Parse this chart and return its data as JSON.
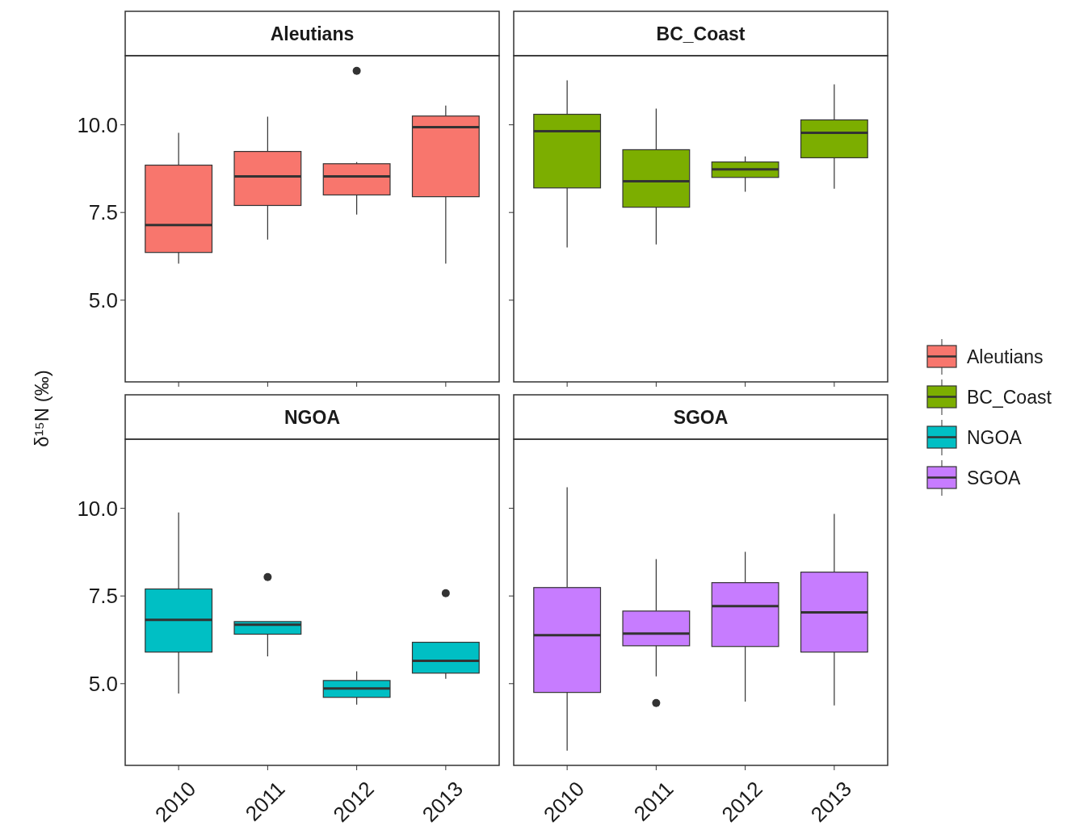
{
  "chart_data": [
    {
      "type": "box",
      "title": "Aleutians",
      "ylabel": "δ¹⁵N (‰)",
      "categories": [
        "2010",
        "2011",
        "2012",
        "2013"
      ],
      "ylim": [
        2.67,
        11.97
      ],
      "yticks": [
        {
          "value": 5,
          "label": "5.0"
        },
        {
          "value": 7.5,
          "label": "7.5"
        },
        {
          "value": 10,
          "label": "10.0"
        }
      ],
      "tick_labels": "y",
      "grid": false,
      "legend": "right",
      "series": [
        {
          "name": "Aleutians",
          "color": "#f8766d",
          "boxes": [
            {
              "low": 6.04,
              "q1": 6.36,
              "median": 7.14,
              "q3": 8.85,
              "high": 9.77
            },
            {
              "low": 6.73,
              "q1": 7.7,
              "median": 8.53,
              "q3": 9.24,
              "high": 10.23
            },
            {
              "low": 7.44,
              "q1": 8.0,
              "median": 8.53,
              "q3": 8.89,
              "high": 8.94,
              "outliers": [
                11.54
              ]
            },
            {
              "low": 6.04,
              "q1": 7.95,
              "median": 9.93,
              "q3": 10.25,
              "high": 10.55
            }
          ]
        }
      ]
    },
    {
      "type": "box",
      "title": "BC_Coast",
      "categories": [
        "2010",
        "2011",
        "2012",
        "2013"
      ],
      "ylim": [
        2.67,
        11.97
      ],
      "yticks": [
        {
          "value": 5,
          "label": null
        },
        {
          "value": 7.5,
          "label": null
        },
        {
          "value": 10,
          "label": null
        }
      ],
      "tick_labels": false,
      "grid": false,
      "legend": "right",
      "series": [
        {
          "name": "BC_Coast",
          "color": "#7cae00",
          "boxes": [
            {
              "low": 6.5,
              "q1": 8.2,
              "median": 9.82,
              "q3": 10.3,
              "high": 11.27
            },
            {
              "low": 6.59,
              "q1": 7.65,
              "median": 8.39,
              "q3": 9.29,
              "high": 10.46
            },
            {
              "low": 8.09,
              "q1": 8.5,
              "median": 8.73,
              "q3": 8.94,
              "high": 9.1
            },
            {
              "low": 8.18,
              "q1": 9.06,
              "median": 9.77,
              "q3": 10.14,
              "high": 11.15
            }
          ]
        }
      ]
    },
    {
      "type": "box",
      "title": "NGOA",
      "categories": [
        "2010",
        "2011",
        "2012",
        "2013"
      ],
      "ylim": [
        2.67,
        11.97
      ],
      "yticks": [
        {
          "value": 5,
          "label": "5.0"
        },
        {
          "value": 7.5,
          "label": "7.5"
        },
        {
          "value": 10,
          "label": "10.0"
        }
      ],
      "grid": false,
      "legend": "right",
      "series": [
        {
          "name": "NGOA",
          "color": "#00bfc4",
          "boxes": [
            {
              "low": 4.72,
              "q1": 5.9,
              "median": 6.82,
              "q3": 7.7,
              "high": 9.88
            },
            {
              "low": 5.78,
              "q1": 6.41,
              "median": 6.68,
              "q3": 6.77,
              "high": 6.77,
              "outliers": [
                8.04
              ]
            },
            {
              "low": 4.4,
              "q1": 4.61,
              "median": 4.86,
              "q3": 5.09,
              "high": 5.35
            },
            {
              "low": 5.14,
              "q1": 5.3,
              "median": 5.65,
              "q3": 6.18,
              "high": 6.18,
              "outliers": [
                7.58
              ]
            }
          ]
        }
      ]
    },
    {
      "type": "box",
      "title": "SGOA",
      "categories": [
        "2010",
        "2011",
        "2012",
        "2013"
      ],
      "ylim": [
        2.67,
        11.97
      ],
      "yticks": [
        {
          "value": 5,
          "label": null
        },
        {
          "value": 7.5,
          "label": null
        },
        {
          "value": 10,
          "label": null
        }
      ],
      "tick_labels": "x",
      "grid": false,
      "legend": "right",
      "series": [
        {
          "name": "SGOA",
          "color": "#c77cff",
          "boxes": [
            {
              "low": 3.09,
              "q1": 4.75,
              "median": 6.38,
              "q3": 7.74,
              "high": 10.6
            },
            {
              "low": 5.21,
              "q1": 6.08,
              "median": 6.43,
              "q3": 7.07,
              "high": 8.55,
              "outliers": [
                4.45
              ]
            },
            {
              "low": 4.49,
              "q1": 6.06,
              "median": 7.21,
              "q3": 7.88,
              "high": 8.76
            },
            {
              "low": 4.38,
              "q1": 5.9,
              "median": 7.03,
              "q3": 8.18,
              "high": 9.84
            }
          ]
        }
      ]
    }
  ]
}
